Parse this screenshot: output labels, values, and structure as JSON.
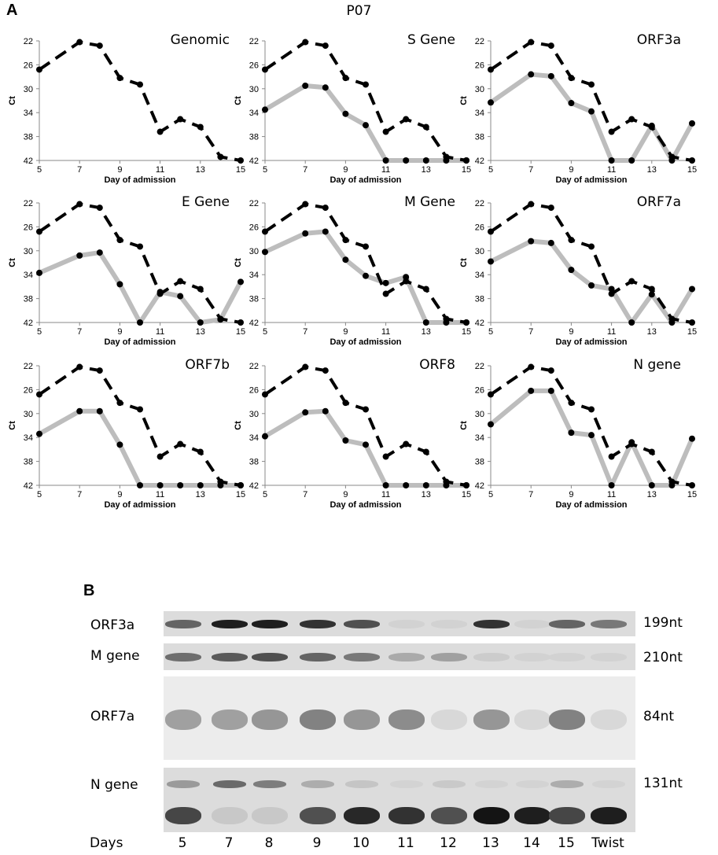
{
  "panel_a_label": "A",
  "panel_b_label": "B",
  "figure_title": "P07",
  "chart_data": [
    {
      "type": "line",
      "title": "Genomic",
      "xlabel": "Day of admission",
      "ylabel": "Ct",
      "ylim": [
        42,
        22
      ],
      "yticks": [
        22,
        26,
        30,
        34,
        38,
        42
      ],
      "xticks": [
        5,
        7,
        9,
        11,
        13,
        15
      ],
      "x": [
        5,
        7,
        8,
        9,
        10,
        11,
        12,
        13,
        14,
        15
      ],
      "series": [
        {
          "style": "dashed-black",
          "values": [
            26.8,
            22.2,
            22.8,
            28.2,
            29.3,
            37.2,
            35.1,
            36.4,
            41.4,
            42
          ]
        }
      ]
    },
    {
      "type": "line",
      "title": "S Gene",
      "xlabel": "Day of admission",
      "ylabel": "Ct",
      "ylim": [
        42,
        22
      ],
      "yticks": [
        22,
        26,
        30,
        34,
        38,
        42
      ],
      "xticks": [
        5,
        7,
        9,
        11,
        13,
        15
      ],
      "x": [
        5,
        7,
        8,
        9,
        10,
        11,
        12,
        13,
        14,
        15
      ],
      "series": [
        {
          "style": "dashed-black",
          "values": [
            26.8,
            22.2,
            22.8,
            28.2,
            29.3,
            37.2,
            35.1,
            36.4,
            41.4,
            42
          ]
        },
        {
          "style": "solid-grey",
          "values": [
            33.5,
            29.5,
            29.8,
            34.2,
            36.1,
            42,
            42,
            42,
            42,
            42
          ]
        }
      ]
    },
    {
      "type": "line",
      "title": "ORF3a",
      "xlabel": "Day of admission",
      "ylabel": "Ct",
      "ylim": [
        42,
        22
      ],
      "yticks": [
        22,
        26,
        30,
        34,
        38,
        42
      ],
      "xticks": [
        5,
        7,
        9,
        11,
        13,
        15
      ],
      "x": [
        5,
        7,
        8,
        9,
        10,
        11,
        12,
        13,
        14,
        15
      ],
      "series": [
        {
          "style": "dashed-black",
          "values": [
            26.8,
            22.2,
            22.8,
            28.2,
            29.3,
            37.2,
            35.1,
            36.4,
            41.4,
            42
          ]
        },
        {
          "style": "solid-grey",
          "values": [
            32.3,
            27.6,
            27.9,
            32.4,
            33.8,
            42,
            42,
            36.2,
            42,
            35.8
          ]
        }
      ]
    },
    {
      "type": "line",
      "title": "E Gene",
      "xlabel": "Day of admission",
      "ylabel": "Ct",
      "ylim": [
        42,
        22
      ],
      "yticks": [
        22,
        26,
        30,
        34,
        38,
        42
      ],
      "xticks": [
        5,
        7,
        9,
        11,
        13,
        15
      ],
      "x": [
        5,
        7,
        8,
        9,
        10,
        11,
        12,
        13,
        14,
        15
      ],
      "series": [
        {
          "style": "dashed-black",
          "values": [
            26.8,
            22.2,
            22.8,
            28.2,
            29.3,
            37.2,
            35.1,
            36.4,
            41.4,
            42
          ]
        },
        {
          "style": "solid-grey",
          "values": [
            33.7,
            30.8,
            30.3,
            35.6,
            42,
            36.9,
            37.6,
            42,
            41.5,
            35.2
          ]
        }
      ]
    },
    {
      "type": "line",
      "title": "M Gene",
      "xlabel": "Day of admission",
      "ylabel": "Ct",
      "ylim": [
        42,
        22
      ],
      "yticks": [
        22,
        26,
        30,
        34,
        38,
        42
      ],
      "xticks": [
        5,
        7,
        9,
        11,
        13,
        15
      ],
      "x": [
        5,
        7,
        8,
        9,
        10,
        11,
        12,
        13,
        14,
        15
      ],
      "series": [
        {
          "style": "dashed-black",
          "values": [
            26.8,
            22.2,
            22.8,
            28.2,
            29.3,
            37.2,
            35.1,
            36.4,
            41.4,
            42
          ]
        },
        {
          "style": "solid-grey",
          "values": [
            30.2,
            27.1,
            26.8,
            31.5,
            34.2,
            35.4,
            34.4,
            42,
            42,
            42
          ]
        }
      ]
    },
    {
      "type": "line",
      "title": "ORF7a",
      "xlabel": "Day of admission",
      "ylabel": "Ct",
      "ylim": [
        42,
        22
      ],
      "yticks": [
        22,
        26,
        30,
        34,
        38,
        42
      ],
      "xticks": [
        5,
        7,
        9,
        11,
        13,
        15
      ],
      "x": [
        5,
        7,
        8,
        9,
        10,
        11,
        12,
        13,
        14,
        15
      ],
      "series": [
        {
          "style": "dashed-black",
          "values": [
            26.8,
            22.2,
            22.8,
            28.2,
            29.3,
            37.2,
            35.1,
            36.4,
            41.4,
            42
          ]
        },
        {
          "style": "solid-grey",
          "values": [
            31.8,
            28.4,
            28.7,
            33.2,
            35.8,
            36.4,
            42,
            37.3,
            42,
            36.4
          ]
        }
      ]
    },
    {
      "type": "line",
      "title": "ORF7b",
      "xlabel": "Day of admission",
      "ylabel": "Ct",
      "ylim": [
        42,
        22
      ],
      "yticks": [
        22,
        26,
        30,
        34,
        38,
        42
      ],
      "xticks": [
        5,
        7,
        9,
        11,
        13,
        15
      ],
      "x": [
        5,
        7,
        8,
        9,
        10,
        11,
        12,
        13,
        14,
        15
      ],
      "series": [
        {
          "style": "dashed-black",
          "values": [
            26.8,
            22.2,
            22.8,
            28.2,
            29.3,
            37.2,
            35.1,
            36.4,
            41.4,
            42
          ]
        },
        {
          "style": "solid-grey",
          "values": [
            33.4,
            29.6,
            29.6,
            35.2,
            42,
            42,
            42,
            42,
            42,
            42
          ]
        }
      ]
    },
    {
      "type": "line",
      "title": "ORF8",
      "xlabel": "Day of admission",
      "ylabel": "Ct",
      "ylim": [
        42,
        22
      ],
      "yticks": [
        22,
        26,
        30,
        34,
        38,
        42
      ],
      "xticks": [
        5,
        7,
        9,
        11,
        13,
        15
      ],
      "x": [
        5,
        7,
        8,
        9,
        10,
        11,
        12,
        13,
        14,
        15
      ],
      "series": [
        {
          "style": "dashed-black",
          "values": [
            26.8,
            22.2,
            22.8,
            28.2,
            29.3,
            37.2,
            35.1,
            36.4,
            41.4,
            42
          ]
        },
        {
          "style": "solid-grey",
          "values": [
            33.8,
            29.8,
            29.6,
            34.5,
            35.2,
            42,
            42,
            42,
            42,
            42
          ]
        }
      ]
    },
    {
      "type": "line",
      "title": "N gene",
      "xlabel": "Day of admission",
      "ylabel": "Ct",
      "ylim": [
        42,
        22
      ],
      "yticks": [
        22,
        26,
        30,
        34,
        38,
        42
      ],
      "xticks": [
        5,
        7,
        9,
        11,
        13,
        15
      ],
      "x": [
        5,
        7,
        8,
        9,
        10,
        11,
        12,
        13,
        14,
        15
      ],
      "series": [
        {
          "style": "dashed-black",
          "values": [
            26.8,
            22.2,
            22.8,
            28.2,
            29.3,
            37.2,
            35.1,
            36.4,
            41.4,
            42
          ]
        },
        {
          "style": "solid-grey",
          "values": [
            31.8,
            26.2,
            26.2,
            33.2,
            33.6,
            42,
            34.8,
            42,
            42,
            34.2
          ]
        }
      ]
    }
  ],
  "gel": {
    "rows": [
      {
        "label": "ORF3a",
        "size": "199nt",
        "bands": [
          0.6,
          0.95,
          0.95,
          0.85,
          0.7,
          0.05,
          0.05,
          0.85,
          0.05,
          0.6,
          0.5
        ]
      },
      {
        "label": "M gene",
        "size": "210nt",
        "bands": [
          0.55,
          0.65,
          0.7,
          0.6,
          0.5,
          0.25,
          0.3,
          0.08,
          0.05,
          0.05,
          0.05
        ]
      },
      {
        "label": "ORF7a",
        "size": "84nt",
        "bands": [
          0.3,
          0.3,
          0.35,
          0.45,
          0.35,
          0.4,
          0.02,
          0.35,
          0.02,
          0.45,
          0.02
        ]
      },
      {
        "label": "N gene",
        "size": "131nt",
        "upper_bands": [
          0.35,
          0.6,
          0.5,
          0.25,
          0.12,
          0.05,
          0.1,
          0.05,
          0.05,
          0.25,
          0.05
        ],
        "bands": [
          0.75,
          0.1,
          0.1,
          0.7,
          0.9,
          0.85,
          0.7,
          1.0,
          0.95,
          0.75,
          0.95
        ]
      }
    ],
    "days_label": "Days",
    "lanes": [
      "5",
      "7",
      "8",
      "9",
      "10",
      "11",
      "12",
      "13",
      "14",
      "15",
      "Twist"
    ]
  }
}
